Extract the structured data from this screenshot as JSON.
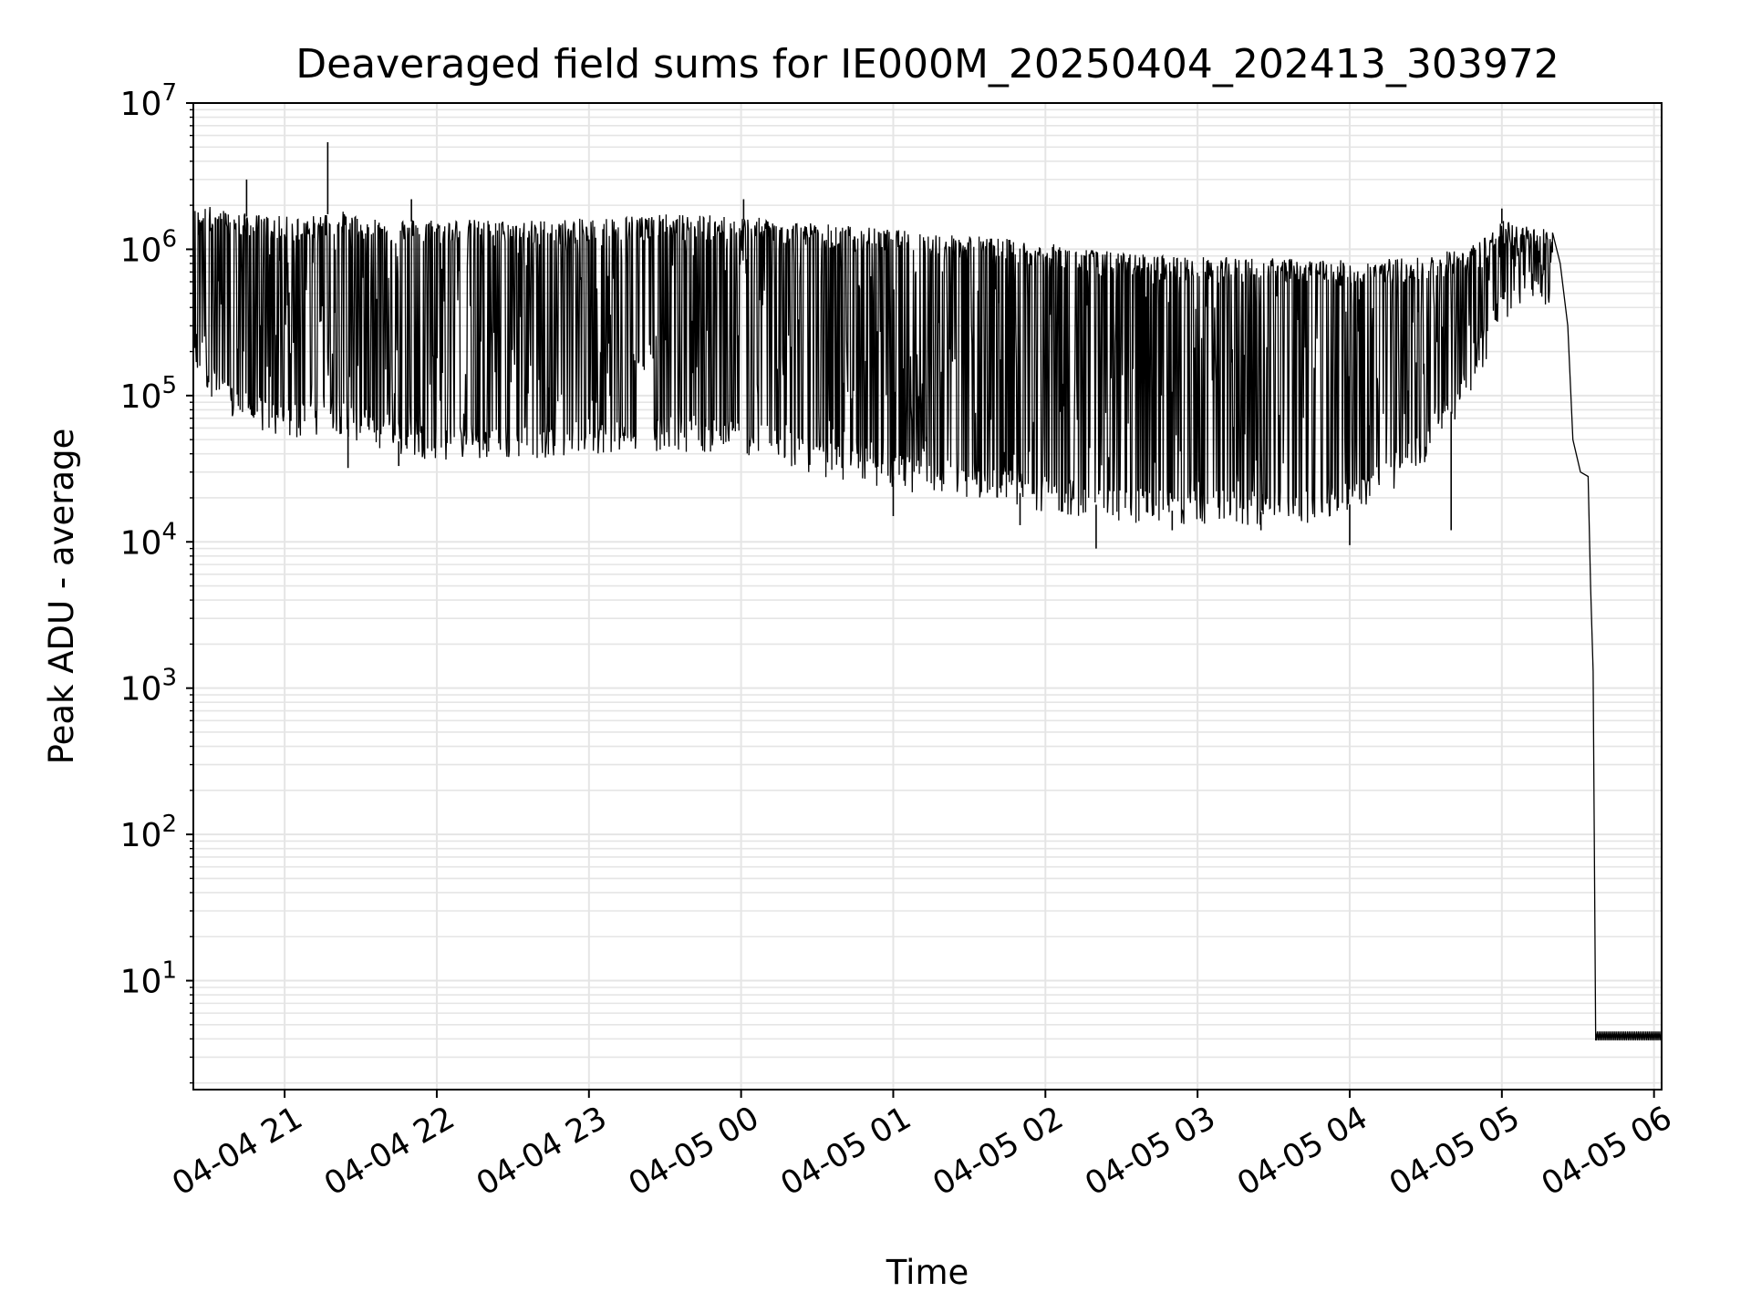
{
  "chart_data": {
    "type": "line",
    "title": "Deaveraged field sums for IE000M_20250404_202413_303972",
    "xlabel": "Time",
    "ylabel": "Peak ADU - average",
    "y_scale": "log",
    "ylim": [
      1.8,
      10000000
    ],
    "xlim": [
      "2025-04-04 20:24",
      "2025-04-05 06:03"
    ],
    "x_ticks": [
      {
        "t": "2025-04-04 21:00",
        "label": "04-04 21"
      },
      {
        "t": "2025-04-04 22:00",
        "label": "04-04 22"
      },
      {
        "t": "2025-04-04 23:00",
        "label": "04-04 23"
      },
      {
        "t": "2025-04-05 00:00",
        "label": "04-05 00"
      },
      {
        "t": "2025-04-05 01:00",
        "label": "04-05 01"
      },
      {
        "t": "2025-04-05 02:00",
        "label": "04-05 02"
      },
      {
        "t": "2025-04-05 03:00",
        "label": "04-05 03"
      },
      {
        "t": "2025-04-05 04:00",
        "label": "04-05 04"
      },
      {
        "t": "2025-04-05 05:00",
        "label": "04-05 05"
      },
      {
        "t": "2025-04-05 06:00",
        "label": "04-05 06"
      }
    ],
    "y_ticks": [
      {
        "value": 10,
        "base": "10",
        "exp": "1"
      },
      {
        "value": 100,
        "base": "10",
        "exp": "2"
      },
      {
        "value": 1000,
        "base": "10",
        "exp": "3"
      },
      {
        "value": 10000,
        "base": "10",
        "exp": "4"
      },
      {
        "value": 100000,
        "base": "10",
        "exp": "5"
      },
      {
        "value": 1000000,
        "base": "10",
        "exp": "6"
      },
      {
        "value": 10000000,
        "base": "10",
        "exp": "7"
      }
    ],
    "grid": true,
    "line_color": "#000000",
    "grid_color": "#e5e5e5",
    "series": [
      {
        "upper_envelope": [
          [
            "2025-04-04 20:24",
            1800000
          ],
          [
            "2025-04-04 20:30",
            1900000
          ],
          [
            "2025-04-04 20:40",
            1700000
          ],
          [
            "2025-04-04 20:50",
            1650000
          ],
          [
            "2025-04-04 21:00",
            1600000
          ],
          [
            "2025-04-04 21:10",
            1600000
          ],
          [
            "2025-04-04 21:20",
            1800000
          ],
          [
            "2025-04-04 21:30",
            1600000
          ],
          [
            "2025-04-04 21:40",
            1550000
          ],
          [
            "2025-04-04 22:00",
            1550000
          ],
          [
            "2025-04-04 22:30",
            1500000
          ],
          [
            "2025-04-04 23:00",
            1550000
          ],
          [
            "2025-04-04 23:20",
            1650000
          ],
          [
            "2025-04-04 23:40",
            1650000
          ],
          [
            "2025-04-05 00:00",
            1600000
          ],
          [
            "2025-04-05 00:20",
            1500000
          ],
          [
            "2025-04-05 00:40",
            1400000
          ],
          [
            "2025-04-05 01:00",
            1300000
          ],
          [
            "2025-04-05 01:30",
            1200000
          ],
          [
            "2025-04-05 02:00",
            1050000
          ],
          [
            "2025-04-05 02:30",
            900000
          ],
          [
            "2025-04-05 03:00",
            850000
          ],
          [
            "2025-04-05 03:30",
            830000
          ],
          [
            "2025-04-05 04:00",
            800000
          ],
          [
            "2025-04-05 04:30",
            850000
          ],
          [
            "2025-04-05 04:50",
            1050000
          ],
          [
            "2025-04-05 05:00",
            1500000
          ],
          [
            "2025-04-05 05:10",
            1400000
          ],
          [
            "2025-04-05 05:20",
            1300000
          ]
        ],
        "lower_envelope": [
          [
            "2025-04-04 20:24",
            180000
          ],
          [
            "2025-04-04 20:30",
            130000
          ],
          [
            "2025-04-04 20:40",
            80000
          ],
          [
            "2025-04-04 21:00",
            60000
          ],
          [
            "2025-04-04 21:20",
            70000
          ],
          [
            "2025-04-04 21:40",
            50000
          ],
          [
            "2025-04-04 22:00",
            45000
          ],
          [
            "2025-04-04 22:30",
            45000
          ],
          [
            "2025-04-04 23:00",
            50000
          ],
          [
            "2025-04-04 23:30",
            52000
          ],
          [
            "2025-04-05 00:00",
            50000
          ],
          [
            "2025-04-05 00:20",
            40000
          ],
          [
            "2025-04-05 00:40",
            32000
          ],
          [
            "2025-04-05 01:00",
            28000
          ],
          [
            "2025-04-05 01:30",
            25000
          ],
          [
            "2025-04-05 02:00",
            20000
          ],
          [
            "2025-04-05 02:30",
            17000
          ],
          [
            "2025-04-05 03:00",
            16000
          ],
          [
            "2025-04-05 03:30",
            16000
          ],
          [
            "2025-04-05 04:00",
            18000
          ],
          [
            "2025-04-05 04:30",
            40000
          ],
          [
            "2025-04-05 04:50",
            150000
          ],
          [
            "2025-04-05 05:00",
            400000
          ],
          [
            "2025-04-05 05:10",
            500000
          ],
          [
            "2025-04-05 05:20",
            500000
          ]
        ],
        "spikes": [
          [
            "2025-04-04 20:45",
            3000000
          ],
          [
            "2025-04-04 21:17",
            5400000
          ],
          [
            "2025-04-04 21:50",
            2200000
          ],
          [
            "2025-04-05 00:01",
            2200000
          ],
          [
            "2025-04-05 05:00",
            1900000
          ]
        ],
        "dips": [
          [
            "2025-04-04 21:25",
            32000
          ],
          [
            "2025-04-04 21:45",
            33000
          ],
          [
            "2025-04-05 01:00",
            15000
          ],
          [
            "2025-04-05 01:50",
            13000
          ],
          [
            "2025-04-05 02:20",
            9000
          ],
          [
            "2025-04-05 02:50",
            12000
          ],
          [
            "2025-04-05 03:25",
            12000
          ],
          [
            "2025-04-05 04:00",
            9500
          ],
          [
            "2025-04-05 04:40",
            12000
          ]
        ],
        "decay": [
          [
            "2025-04-05 05:20",
            1300000
          ],
          [
            "2025-04-05 05:23",
            800000
          ],
          [
            "2025-04-05 05:26",
            300000
          ],
          [
            "2025-04-05 05:28",
            50000
          ],
          [
            "2025-04-05 05:31",
            30000
          ],
          [
            "2025-04-05 05:34",
            28000
          ],
          [
            "2025-04-05 05:35",
            5000
          ],
          [
            "2025-04-05 05:36",
            1300
          ],
          [
            "2025-04-05 05:37",
            3.9
          ]
        ],
        "floor": {
          "from": "2025-04-05 05:37",
          "to": "2025-04-05 06:03",
          "low": 3.9,
          "high": 4.5
        }
      }
    ]
  }
}
